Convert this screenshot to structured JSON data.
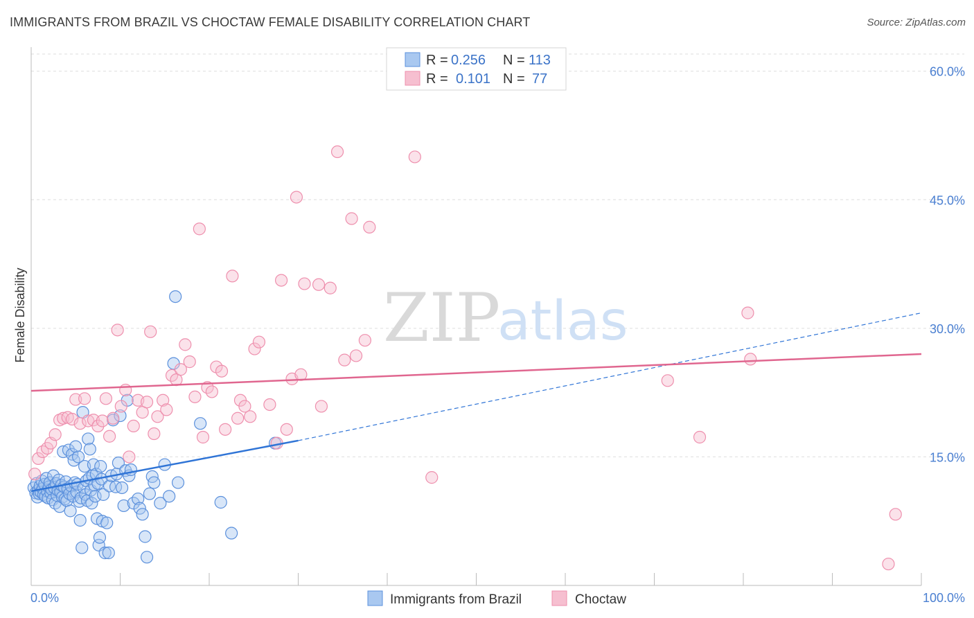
{
  "header": {
    "title": "IMMIGRANTS FROM BRAZIL VS CHOCTAW FEMALE DISABILITY CORRELATION CHART",
    "source": "Source: ZipAtlas.com"
  },
  "watermark": {
    "zip": "ZIP",
    "atlas": "atlas"
  },
  "colors": {
    "blue_fill": "#a9c8f0",
    "blue_stroke": "#5b90dc",
    "blue_line": "#2f74d6",
    "pink_fill": "#f6bfd0",
    "pink_stroke": "#ee8fad",
    "pink_line": "#e0668f",
    "grid": "#dddddd",
    "axis_text": "#4a7fd1"
  },
  "legend": {
    "rows": [
      {
        "r_label": "R =",
        "r_value": "0.256",
        "n_label": "N =",
        "n_value": "113"
      },
      {
        "r_label": "R =",
        "r_value": "0.101",
        "n_label": "N =",
        "n_value": "77"
      }
    ]
  },
  "bottom_legend": [
    {
      "label": "Immigrants from Brazil",
      "series": "blue"
    },
    {
      "label": "Choctaw",
      "series": "pink"
    }
  ],
  "chart_data": {
    "type": "scatter",
    "title": "IMMIGRANTS FROM BRAZIL VS CHOCTAW FEMALE DISABILITY CORRELATION CHART",
    "xlabel": "",
    "ylabel": "Female Disability",
    "xlim": [
      0,
      100
    ],
    "ylim": [
      0,
      62
    ],
    "x_tick_labels": [
      "0.0%",
      "100.0%"
    ],
    "y_ticks": [
      15,
      30,
      45,
      60
    ],
    "y_tick_labels": [
      "15.0%",
      "30.0%",
      "45.0%",
      "60.0%"
    ],
    "grid": true,
    "series": [
      {
        "name": "Immigrants from Brazil",
        "color": "blue",
        "R": 0.256,
        "N": 113,
        "trend": {
          "x0": 0,
          "y0": 11.0,
          "x1": 30,
          "y1": 16.9
        },
        "trend_extension": {
          "x0": 30,
          "y0": 16.9,
          "x1": 100,
          "y1": 31.8
        },
        "points": [
          [
            0.3,
            11.4
          ],
          [
            0.5,
            10.8
          ],
          [
            0.6,
            11.9
          ],
          [
            0.7,
            10.3
          ],
          [
            0.8,
            11.1
          ],
          [
            0.9,
            10.7
          ],
          [
            1.0,
            11.6
          ],
          [
            1.1,
            10.9
          ],
          [
            1.2,
            12.2
          ],
          [
            1.3,
            11.3
          ],
          [
            1.4,
            10.6
          ],
          [
            1.5,
            11.8
          ],
          [
            1.6,
            10.4
          ],
          [
            1.7,
            12.5
          ],
          [
            1.8,
            11.0
          ],
          [
            1.9,
            10.2
          ],
          [
            2.0,
            11.5
          ],
          [
            2.1,
            12.0
          ],
          [
            2.2,
            10.8
          ],
          [
            2.3,
            11.2
          ],
          [
            2.4,
            10.0
          ],
          [
            2.5,
            12.8
          ],
          [
            2.6,
            11.4
          ],
          [
            2.7,
            9.6
          ],
          [
            2.8,
            11.9
          ],
          [
            2.9,
            10.5
          ],
          [
            3.0,
            11.1
          ],
          [
            3.1,
            12.3
          ],
          [
            3.2,
            9.2
          ],
          [
            3.3,
            10.9
          ],
          [
            3.4,
            11.7
          ],
          [
            3.5,
            10.3
          ],
          [
            3.6,
            15.6
          ],
          [
            3.7,
            11.5
          ],
          [
            3.8,
            10.1
          ],
          [
            3.9,
            12.1
          ],
          [
            4.0,
            9.9
          ],
          [
            4.1,
            11.3
          ],
          [
            4.2,
            15.8
          ],
          [
            4.3,
            10.7
          ],
          [
            4.4,
            8.7
          ],
          [
            4.5,
            11.6
          ],
          [
            4.6,
            15.3
          ],
          [
            4.7,
            10.4
          ],
          [
            4.8,
            14.6
          ],
          [
            4.9,
            12.0
          ],
          [
            5.0,
            16.2
          ],
          [
            5.1,
            10.9
          ],
          [
            5.2,
            11.8
          ],
          [
            5.3,
            15.0
          ],
          [
            5.4,
            9.8
          ],
          [
            5.5,
            7.6
          ],
          [
            5.6,
            10.2
          ],
          [
            5.7,
            4.4
          ],
          [
            5.8,
            20.2
          ],
          [
            5.9,
            11.4
          ],
          [
            6.0,
            13.9
          ],
          [
            6.1,
            10.6
          ],
          [
            6.2,
            12.2
          ],
          [
            6.3,
            9.9
          ],
          [
            6.4,
            17.1
          ],
          [
            6.5,
            12.5
          ],
          [
            6.6,
            15.9
          ],
          [
            6.7,
            11.1
          ],
          [
            6.8,
            9.6
          ],
          [
            6.9,
            12.8
          ],
          [
            7.0,
            14.1
          ],
          [
            7.1,
            11.7
          ],
          [
            7.2,
            10.4
          ],
          [
            7.3,
            13.0
          ],
          [
            7.4,
            7.8
          ],
          [
            7.5,
            11.9
          ],
          [
            7.6,
            4.7
          ],
          [
            7.7,
            5.6
          ],
          [
            7.8,
            13.9
          ],
          [
            7.9,
            12.4
          ],
          [
            8.0,
            7.5
          ],
          [
            8.1,
            10.6
          ],
          [
            8.3,
            3.8
          ],
          [
            8.5,
            7.3
          ],
          [
            8.7,
            3.8
          ],
          [
            8.8,
            11.6
          ],
          [
            9.0,
            12.8
          ],
          [
            9.2,
            19.3
          ],
          [
            9.5,
            11.5
          ],
          [
            9.6,
            13.0
          ],
          [
            9.8,
            14.3
          ],
          [
            10.0,
            19.8
          ],
          [
            10.2,
            11.4
          ],
          [
            10.4,
            9.3
          ],
          [
            10.6,
            13.4
          ],
          [
            10.8,
            21.6
          ],
          [
            11.0,
            12.8
          ],
          [
            11.2,
            13.5
          ],
          [
            11.5,
            9.6
          ],
          [
            12.0,
            10.1
          ],
          [
            12.2,
            9.0
          ],
          [
            12.5,
            8.3
          ],
          [
            12.8,
            5.7
          ],
          [
            13.0,
            3.3
          ],
          [
            13.3,
            10.7
          ],
          [
            13.6,
            12.7
          ],
          [
            13.8,
            12.0
          ],
          [
            14.5,
            9.6
          ],
          [
            15.0,
            14.1
          ],
          [
            15.5,
            10.4
          ],
          [
            16.0,
            25.9
          ],
          [
            16.2,
            33.7
          ],
          [
            16.5,
            12.0
          ],
          [
            19.0,
            18.9
          ],
          [
            21.3,
            9.7
          ],
          [
            22.5,
            6.1
          ],
          [
            27.4,
            16.6
          ]
        ]
      },
      {
        "name": "Choctaw",
        "color": "pink",
        "R": 0.101,
        "N": 77,
        "trend": {
          "x0": 0,
          "y0": 22.7,
          "x1": 100,
          "y1": 27.0
        },
        "points": [
          [
            0.4,
            13.0
          ],
          [
            0.8,
            14.8
          ],
          [
            1.3,
            15.6
          ],
          [
            1.8,
            16.0
          ],
          [
            2.2,
            16.6
          ],
          [
            2.7,
            17.6
          ],
          [
            3.2,
            19.3
          ],
          [
            3.6,
            19.5
          ],
          [
            4.1,
            19.6
          ],
          [
            4.6,
            19.4
          ],
          [
            5.0,
            21.7
          ],
          [
            5.5,
            18.9
          ],
          [
            6.0,
            21.8
          ],
          [
            6.4,
            19.2
          ],
          [
            7.0,
            19.3
          ],
          [
            7.5,
            18.6
          ],
          [
            8.0,
            19.2
          ],
          [
            8.4,
            21.8
          ],
          [
            8.8,
            17.4
          ],
          [
            9.2,
            19.5
          ],
          [
            9.7,
            29.8
          ],
          [
            10.1,
            20.9
          ],
          [
            10.6,
            22.8
          ],
          [
            11.0,
            15.0
          ],
          [
            11.5,
            18.6
          ],
          [
            12.0,
            21.6
          ],
          [
            12.5,
            20.2
          ],
          [
            13.0,
            21.4
          ],
          [
            13.4,
            29.6
          ],
          [
            13.8,
            17.7
          ],
          [
            14.2,
            19.7
          ],
          [
            14.8,
            21.6
          ],
          [
            15.2,
            20.5
          ],
          [
            15.8,
            24.5
          ],
          [
            16.3,
            24.0
          ],
          [
            16.8,
            25.2
          ],
          [
            17.3,
            28.1
          ],
          [
            17.8,
            26.1
          ],
          [
            18.4,
            22.0
          ],
          [
            18.9,
            41.6
          ],
          [
            19.3,
            17.3
          ],
          [
            19.8,
            23.1
          ],
          [
            20.3,
            22.6
          ],
          [
            20.8,
            25.5
          ],
          [
            21.4,
            25.0
          ],
          [
            21.8,
            18.2
          ],
          [
            22.6,
            36.1
          ],
          [
            23.2,
            19.5
          ],
          [
            23.5,
            21.6
          ],
          [
            24.0,
            20.9
          ],
          [
            24.6,
            19.7
          ],
          [
            25.1,
            27.6
          ],
          [
            25.6,
            28.4
          ],
          [
            26.8,
            21.1
          ],
          [
            27.6,
            16.6
          ],
          [
            28.1,
            35.6
          ],
          [
            28.7,
            18.2
          ],
          [
            29.3,
            24.1
          ],
          [
            29.8,
            45.3
          ],
          [
            30.3,
            24.6
          ],
          [
            30.7,
            35.2
          ],
          [
            32.3,
            35.1
          ],
          [
            32.6,
            20.9
          ],
          [
            33.6,
            34.7
          ],
          [
            34.4,
            50.6
          ],
          [
            35.2,
            26.3
          ],
          [
            36.0,
            42.8
          ],
          [
            36.5,
            26.8
          ],
          [
            37.5,
            28.6
          ],
          [
            38.0,
            41.8
          ],
          [
            43.1,
            50.0
          ],
          [
            45.0,
            12.6
          ],
          [
            71.5,
            23.9
          ],
          [
            75.1,
            17.3
          ],
          [
            80.5,
            31.8
          ],
          [
            80.8,
            26.4
          ],
          [
            97.1,
            8.3
          ],
          [
            96.3,
            2.5
          ]
        ]
      }
    ]
  }
}
